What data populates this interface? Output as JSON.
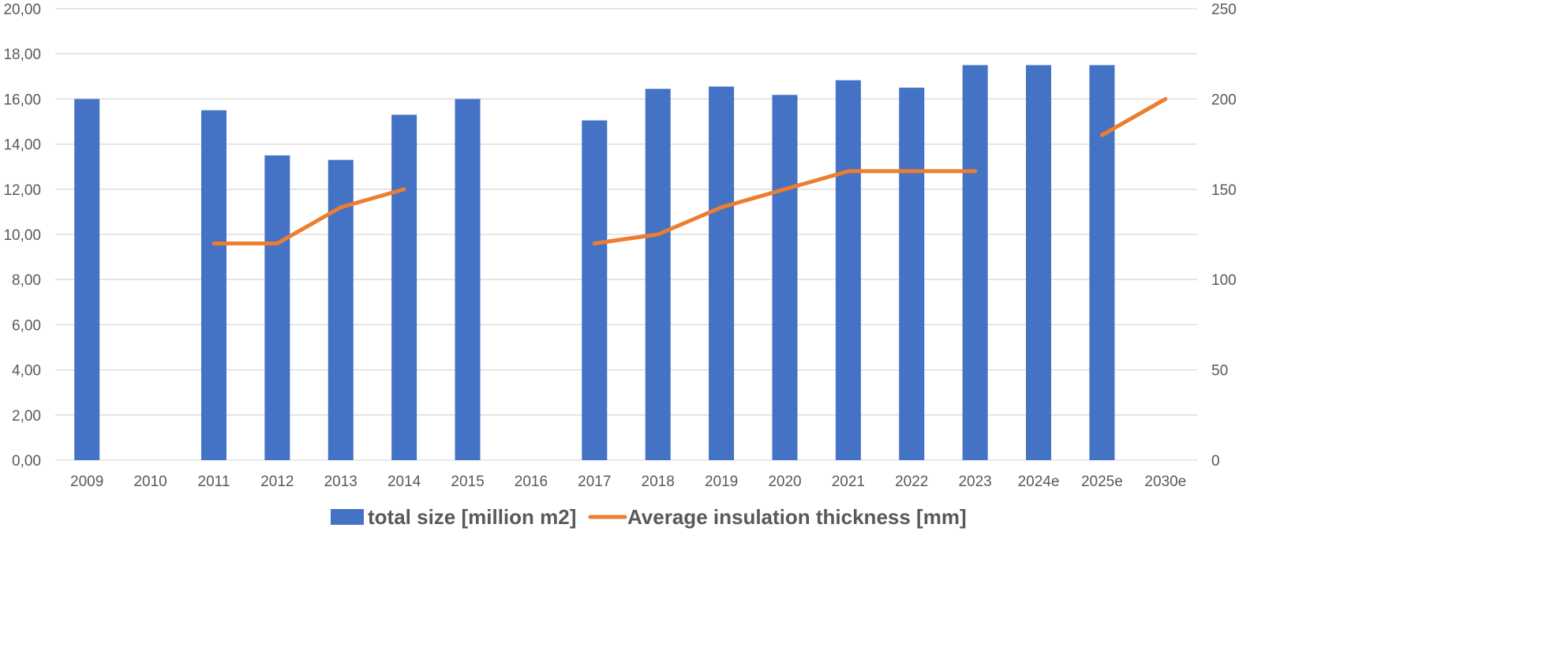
{
  "chart_data": {
    "type": "bar",
    "categories": [
      "2009",
      "2010",
      "2011",
      "2012",
      "2013",
      "2014",
      "2015",
      "2016",
      "2017",
      "2018",
      "2019",
      "2020",
      "2021",
      "2022",
      "2023",
      "2024e",
      "2025e",
      "2030e"
    ],
    "series": [
      {
        "name": "total size [million m2]",
        "type": "bar",
        "axis": "left",
        "color": "#4472C4",
        "values": [
          16.0,
          null,
          15.5,
          13.5,
          13.3,
          15.3,
          16.0,
          null,
          15.05,
          16.45,
          16.55,
          16.18,
          16.83,
          16.5,
          17.5,
          17.5,
          17.5,
          null
        ]
      },
      {
        "name": "Average insulation thickness [mm]",
        "type": "line",
        "axis": "right",
        "color": "#ED7D31",
        "values": [
          null,
          null,
          120,
          120,
          140,
          150,
          null,
          null,
          120,
          125,
          140,
          150,
          160,
          160,
          160,
          null,
          180,
          200
        ]
      }
    ],
    "y_left": {
      "min": 0,
      "max": 20,
      "step": 2,
      "tick_labels": [
        "0,00",
        "2,00",
        "4,00",
        "6,00",
        "8,00",
        "10,00",
        "12,00",
        "14,00",
        "16,00",
        "18,00",
        "20,00"
      ]
    },
    "y_right": {
      "min": 0,
      "max": 250,
      "step": 50,
      "tick_labels": [
        "0",
        "50",
        "100",
        "150",
        "200",
        "250"
      ]
    },
    "grid": true,
    "legend_position": "bottom-center"
  }
}
